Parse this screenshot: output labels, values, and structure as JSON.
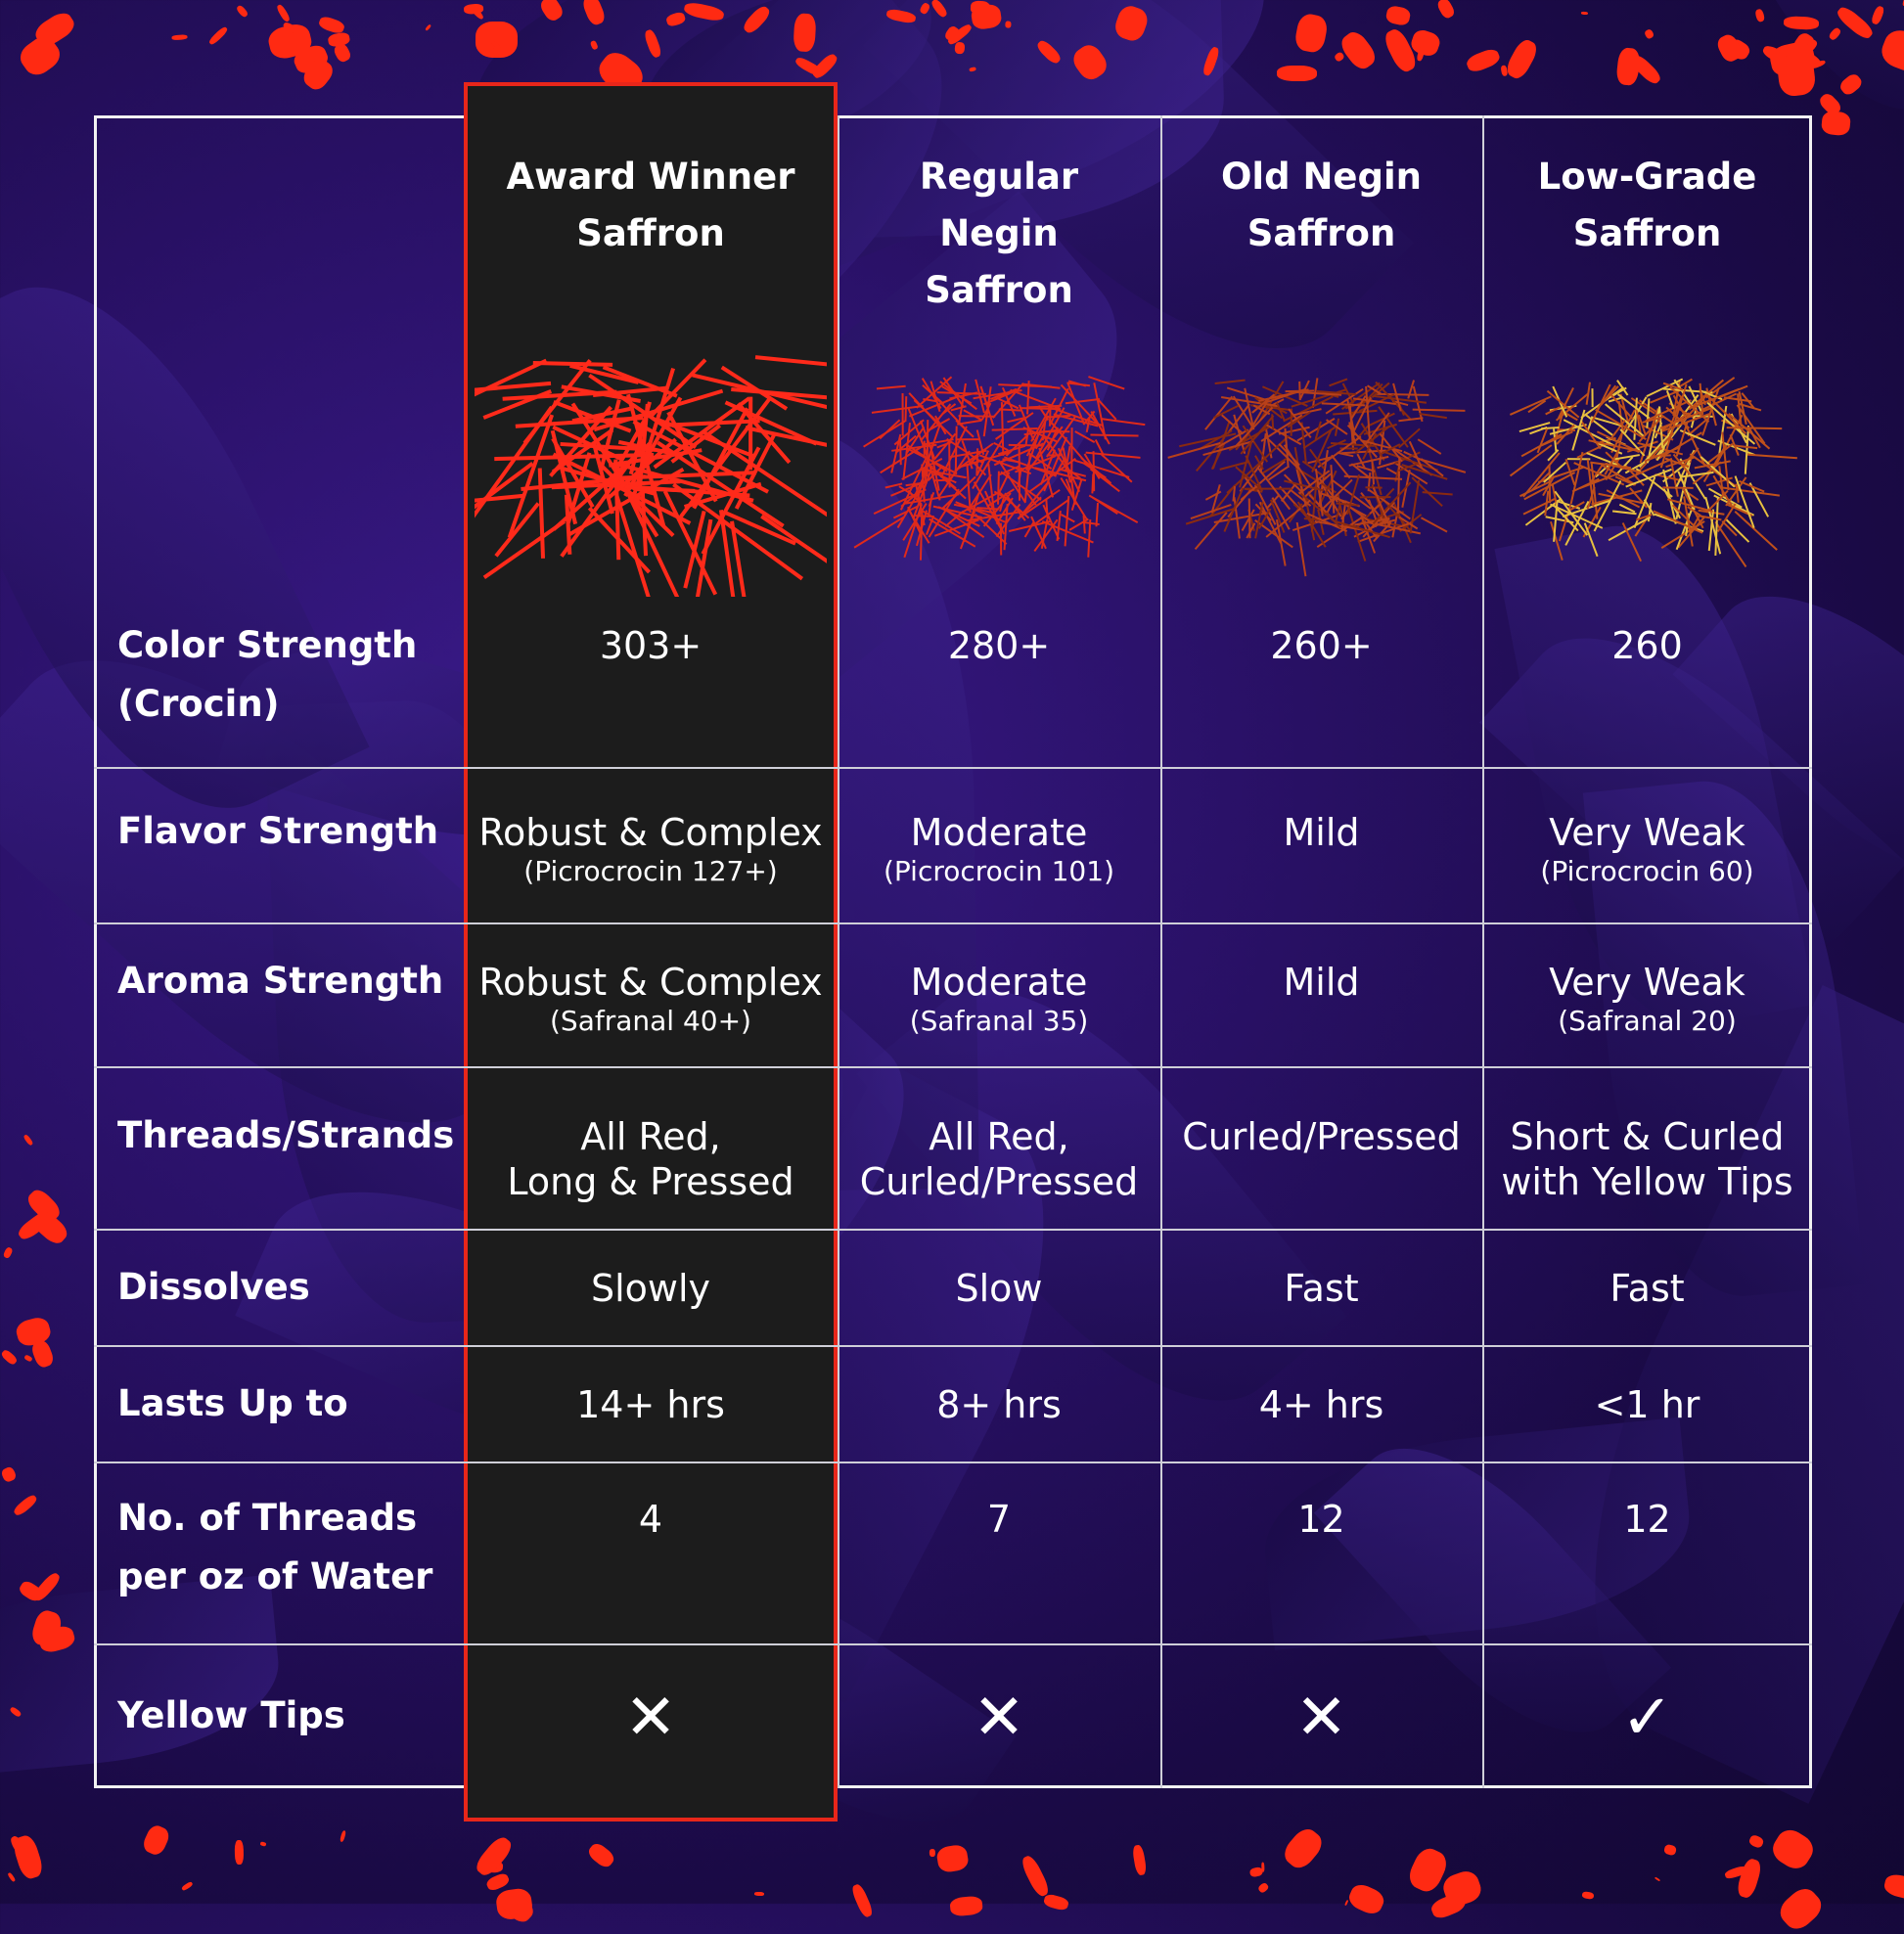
{
  "columns": [
    {
      "title": "Award Winner Saffron",
      "title_lines": [
        "Award Winner",
        "Saffron"
      ],
      "image": "saffron-long-red-threads",
      "color": "#ff2a1a"
    },
    {
      "title": "Regular Negin Saffron",
      "title_lines": [
        "Regular",
        "Negin",
        "Saffron"
      ],
      "image": "saffron-red-curled",
      "color": "#e02a1a"
    },
    {
      "title": "Old Negin Saffron",
      "title_lines": [
        "Old Negin",
        "Saffron"
      ],
      "image": "saffron-dark-orange",
      "color": "#b8401a"
    },
    {
      "title": "Low-Grade Saffron",
      "title_lines": [
        "Low-Grade",
        "Saffron"
      ],
      "image": "saffron-yellow-tips",
      "color": "#c0501a"
    }
  ],
  "rows": [
    {
      "label": "Color Strength (Crocin)",
      "label_lines": [
        "Color Strength",
        "(Crocin)"
      ],
      "values": [
        {
          "main": "303+"
        },
        {
          "main": "280+"
        },
        {
          "main": "260+"
        },
        {
          "main": "260"
        }
      ]
    },
    {
      "label": "Flavor Strength",
      "label_lines": [
        "Flavor Strength"
      ],
      "values": [
        {
          "main": "Robust & Complex",
          "sub": "(Picrocrocin 127+)"
        },
        {
          "main": "Moderate",
          "sub": "(Picrocrocin 101)"
        },
        {
          "main": "Mild"
        },
        {
          "main": "Very Weak",
          "sub": "(Picrocrocin 60)"
        }
      ]
    },
    {
      "label": "Aroma Strength",
      "label_lines": [
        "Aroma Strength"
      ],
      "values": [
        {
          "main": "Robust & Complex",
          "sub": "(Safranal 40+)"
        },
        {
          "main": "Moderate",
          "sub": "(Safranal 35)"
        },
        {
          "main": "Mild"
        },
        {
          "main": "Very Weak",
          "sub": "(Safranal 20)"
        }
      ]
    },
    {
      "label": "Threads/Strands",
      "label_lines": [
        "Threads/Strands"
      ],
      "values": [
        {
          "main": "All Red,",
          "sub2": "Long & Pressed"
        },
        {
          "main": "All Red,",
          "sub2": "Curled/Pressed"
        },
        {
          "main": "Curled/Pressed"
        },
        {
          "main": "Short & Curled",
          "sub2": "with Yellow Tips"
        }
      ]
    },
    {
      "label": "Dissolves",
      "label_lines": [
        "Dissolves"
      ],
      "values": [
        {
          "main": "Slowly"
        },
        {
          "main": "Slow"
        },
        {
          "main": "Fast"
        },
        {
          "main": "Fast"
        }
      ]
    },
    {
      "label": "Lasts Up to",
      "label_lines": [
        "Lasts Up to"
      ],
      "values": [
        {
          "main": "14+ hrs"
        },
        {
          "main": "8+ hrs"
        },
        {
          "main": "4+ hrs"
        },
        {
          "main": "<1 hr"
        }
      ]
    },
    {
      "label": "No. of Threads per oz of Water",
      "label_lines": [
        "No. of Threads",
        "per oz of Water"
      ],
      "values": [
        {
          "main": "4"
        },
        {
          "main": "7"
        },
        {
          "main": "12"
        },
        {
          "main": "12"
        }
      ]
    },
    {
      "label": "Yellow Tips",
      "label_lines": [
        "Yellow Tips"
      ],
      "values": [
        {
          "icon": "x-icon",
          "main": "✕"
        },
        {
          "icon": "x-icon",
          "main": "✕"
        },
        {
          "icon": "x-icon",
          "main": "✕"
        },
        {
          "icon": "check-icon",
          "main": "✓"
        }
      ]
    }
  ],
  "colors": {
    "highlight_border": "#e8261a",
    "highlight_bg": "#1c1c1c",
    "background": "#2a1168",
    "splatter": "#ff2a12"
  }
}
